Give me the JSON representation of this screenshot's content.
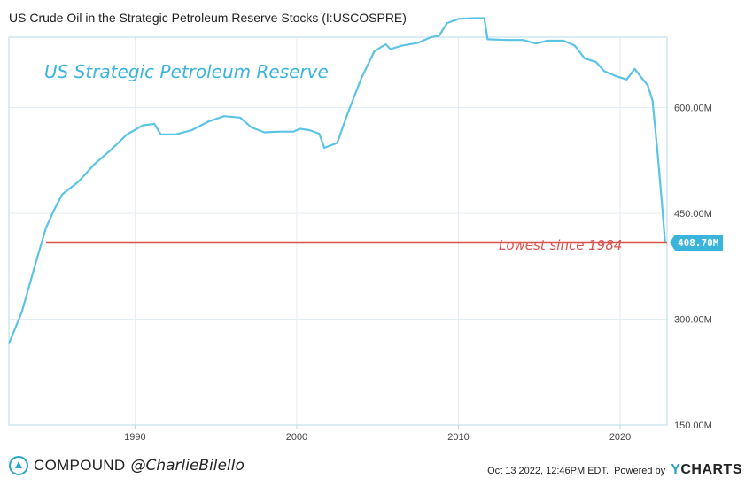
{
  "colors": {
    "series": "#5bc4e4",
    "threshold": "#d9534f",
    "annotation_blue": "#3ab4da",
    "badge": "#3ab4da",
    "grid": "#e3eef3",
    "frame": "#b7dbe8"
  },
  "chart_data": {
    "type": "line",
    "title": "US Crude Oil in the Strategic Petroleum Reserve Stocks (I:USCOSPRE)",
    "xlabel": "",
    "ylabel": "",
    "xlim": [
      1982.2,
      2022.9
    ],
    "ylim": [
      150,
      700
    ],
    "y_unit": "M",
    "x_ticks": [
      1990,
      2000,
      2010,
      2020
    ],
    "y_ticks": [
      150,
      300,
      450,
      600
    ],
    "y_tick_labels": [
      "150.00M",
      "300.00M",
      "450.00M",
      "600.00M"
    ],
    "grid": true,
    "series": [
      {
        "name": "",
        "points": [
          [
            1982.2,
            265
          ],
          [
            1983.0,
            310
          ],
          [
            1983.8,
            375
          ],
          [
            1984.5,
            430
          ],
          [
            1985.0,
            455
          ],
          [
            1985.5,
            477
          ],
          [
            1986.5,
            495
          ],
          [
            1987.5,
            520
          ],
          [
            1988.5,
            540
          ],
          [
            1989.5,
            562
          ],
          [
            1990.5,
            575
          ],
          [
            1991.2,
            577
          ],
          [
            1991.6,
            562
          ],
          [
            1992.5,
            562
          ],
          [
            1993.5,
            568
          ],
          [
            1994.5,
            580
          ],
          [
            1995.5,
            588
          ],
          [
            1996.5,
            586
          ],
          [
            1997.2,
            572
          ],
          [
            1998.0,
            565
          ],
          [
            1999.0,
            566
          ],
          [
            1999.8,
            566
          ],
          [
            2000.2,
            570
          ],
          [
            2000.8,
            568
          ],
          [
            2001.4,
            563
          ],
          [
            2001.7,
            543
          ],
          [
            2002.5,
            550
          ],
          [
            2003.2,
            595
          ],
          [
            2004.0,
            642
          ],
          [
            2004.8,
            680
          ],
          [
            2005.5,
            690
          ],
          [
            2005.8,
            683
          ],
          [
            2006.5,
            688
          ],
          [
            2007.5,
            692
          ],
          [
            2008.3,
            700
          ],
          [
            2008.8,
            702
          ],
          [
            2009.3,
            720
          ],
          [
            2010.0,
            726
          ],
          [
            2011.0,
            727
          ],
          [
            2011.6,
            727
          ],
          [
            2011.8,
            697
          ],
          [
            2013.0,
            696
          ],
          [
            2014.0,
            696
          ],
          [
            2014.8,
            691
          ],
          [
            2015.5,
            695
          ],
          [
            2016.5,
            695
          ],
          [
            2017.2,
            688
          ],
          [
            2017.8,
            670
          ],
          [
            2018.5,
            665
          ],
          [
            2019.0,
            652
          ],
          [
            2019.7,
            645
          ],
          [
            2020.4,
            640
          ],
          [
            2020.9,
            655
          ],
          [
            2021.3,
            643
          ],
          [
            2021.7,
            632
          ],
          [
            2022.0,
            610
          ],
          [
            2022.3,
            540
          ],
          [
            2022.6,
            460
          ],
          [
            2022.78,
            408.7
          ]
        ]
      }
    ],
    "reference_line": {
      "y": 408.7,
      "x_start": 1984.5
    },
    "last_value_label": "408.70M",
    "annotations": [
      {
        "text": "US Strategic Petroleum Reserve"
      },
      {
        "text": "Lowest since 1984"
      }
    ]
  },
  "footer": {
    "brand": "COMPOUND",
    "handle": "@CharlieBilello",
    "timestamp": "Oct 13 2022, 12:46PM EDT.",
    "powered_by": "Powered by",
    "provider_y": "Y",
    "provider_rest": "CHARTS"
  }
}
